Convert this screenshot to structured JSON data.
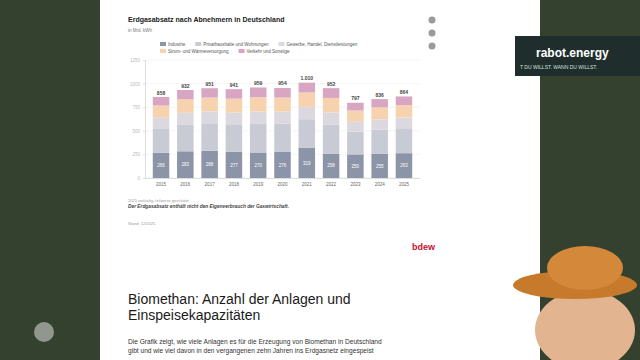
{
  "chart_data": {
    "type": "bar",
    "stacked": true,
    "title": "Erdgasabsatz nach Abnehmern in Deutschland",
    "subtitle": "in Mrd. kWh",
    "categories": [
      "2015",
      "2016",
      "2017",
      "2018",
      "2019",
      "2020",
      "2021",
      "2022",
      "2023",
      "2024",
      "2025"
    ],
    "series": [
      {
        "name": "Industrie",
        "color": "#8c94a8",
        "data_labels": true,
        "values": [
          266,
          283,
          288,
          277,
          270,
          276,
          319,
          258,
          250,
          255,
          263
        ]
      },
      {
        "name": "Privathaushalte und Wohnungen",
        "color": "#c8cbd4",
        "values": [
          260,
          285,
          292,
          292,
          303,
          298,
          304,
          305,
          241,
          256,
          264
        ]
      },
      {
        "name": "Gewerbe, Handel, Dienstleistungen",
        "color": "#dcd8e0",
        "values": [
          112,
          123,
          126,
          126,
          131,
          129,
          131,
          132,
          104,
          110,
          114
        ]
      },
      {
        "name": "Strom- und Wärmeversorgung",
        "color": "#f6d2ae",
        "values": [
          130,
          143,
          146,
          146,
          152,
          149,
          152,
          153,
          120,
          128,
          132
        ]
      },
      {
        "name": "Verkehr und Sonstige",
        "color": "#d8a6c2",
        "values": [
          90,
          98,
          99,
          100,
          103,
          102,
          104,
          104,
          82,
          87,
          91
        ]
      }
    ],
    "totals": [
      858,
      932,
      951,
      941,
      959,
      954,
      1010,
      952,
      797,
      836,
      864
    ],
    "total_labels": [
      "858",
      "932",
      "951",
      "941",
      "959",
      "954",
      "1.010",
      "952",
      "797",
      "836",
      "864"
    ],
    "ylim": [
      0,
      1250
    ],
    "yticks": [
      0,
      250,
      500,
      750,
      1000,
      1250
    ],
    "grid": true,
    "notes": [
      "2025 vorläufig, teilweise geschätzt",
      "Der Erdgasabsatz enthält nicht den Eigenverbrauch der Gaswirtschaft.",
      "Stand: 12/2025"
    ],
    "source_logo": "bdew"
  },
  "article": {
    "heading": "Biomethan: Anzahl der Anlagen und Einspeisekapazitäten",
    "paragraph": "Die Grafik zeigt, wie viele Anlagen es für die Erzeugung von Biomethan in Deutschland gibt und wie viel davon in den vergangenen zehn Jahren ins Erdgasnetz eingespeist"
  },
  "overlay": {
    "brand": "rabot.energy",
    "slogan": "T DU WILLST. WANN DU WILLST."
  }
}
